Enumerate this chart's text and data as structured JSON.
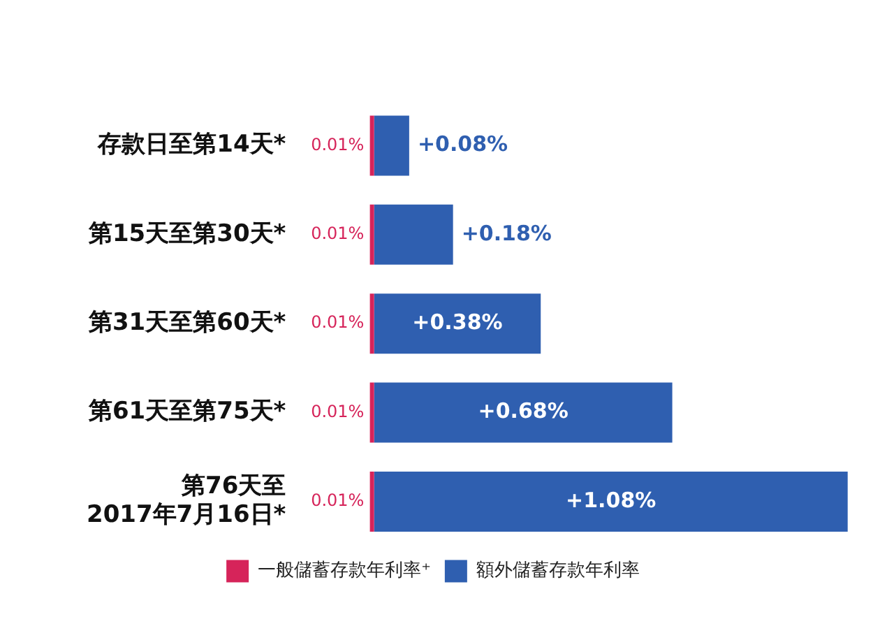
{
  "chart_data": {
    "type": "bar",
    "orientation": "horizontal",
    "stacked": true,
    "categories": [
      "存款日至第14天*",
      "第15天至第30天*",
      "第31天至第60天*",
      "第61天至第75天*",
      "第76天至\n2017年7月16日*"
    ],
    "series": [
      {
        "name": "一般儲蓄存款年利率⁺",
        "color": "#d6245a",
        "values": [
          0.01,
          0.01,
          0.01,
          0.01,
          0.01
        ],
        "value_labels": [
          "0.01%",
          "0.01%",
          "0.01%",
          "0.01%",
          "0.01%"
        ]
      },
      {
        "name": "額外儲蓄存款年利率",
        "color": "#2f5fb0",
        "values": [
          0.08,
          0.18,
          0.38,
          0.68,
          1.08
        ],
        "value_labels": [
          "+0.08%",
          "+0.18%",
          "+0.38%",
          "+0.68%",
          "+1.08%"
        ]
      }
    ],
    "xlim": [
      0,
      1.1
    ],
    "tick_labels": "y",
    "grid": false,
    "legend": "bottom"
  }
}
